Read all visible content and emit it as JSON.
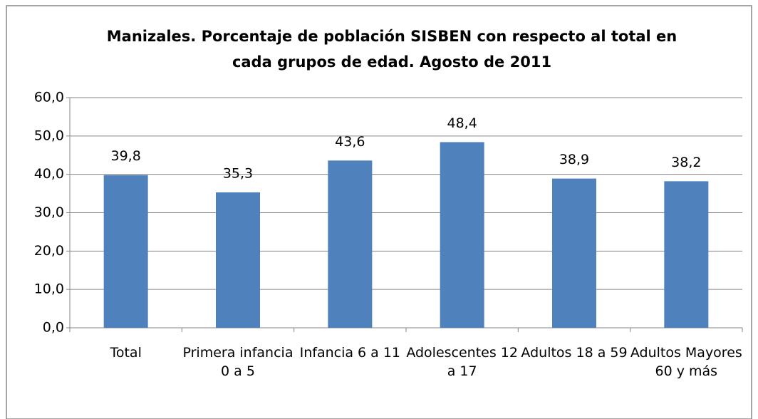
{
  "chart_data": {
    "type": "bar",
    "title": [
      "Manizales. Porcentaje de población SISBEN con respecto al total en",
      "cada grupos de edad. Agosto de 2011"
    ],
    "categories": [
      "Total",
      "Primera infancia 0 a 5",
      "Infancia 6 a 11",
      "Adolescentes 12 a 17",
      "Adultos 18 a 59",
      "Adultos Mayores 60 y más"
    ],
    "values": [
      39.8,
      35.3,
      43.6,
      48.4,
      38.9,
      38.2
    ],
    "value_labels": [
      "39,8",
      "35,3",
      "43,6",
      "48,4",
      "38,9",
      "38,2"
    ],
    "color": "#4f81bd",
    "ylim": [
      0,
      60
    ],
    "yticks": [
      {
        "value": 0,
        "label": "0,0"
      },
      {
        "value": 10,
        "label": "10,0"
      },
      {
        "value": 20,
        "label": "20,0"
      },
      {
        "value": 30,
        "label": "30,0"
      },
      {
        "value": 40,
        "label": "40,0"
      },
      {
        "value": 50,
        "label": "50,0"
      },
      {
        "value": 60,
        "label": "60,0"
      }
    ],
    "grid": true
  }
}
